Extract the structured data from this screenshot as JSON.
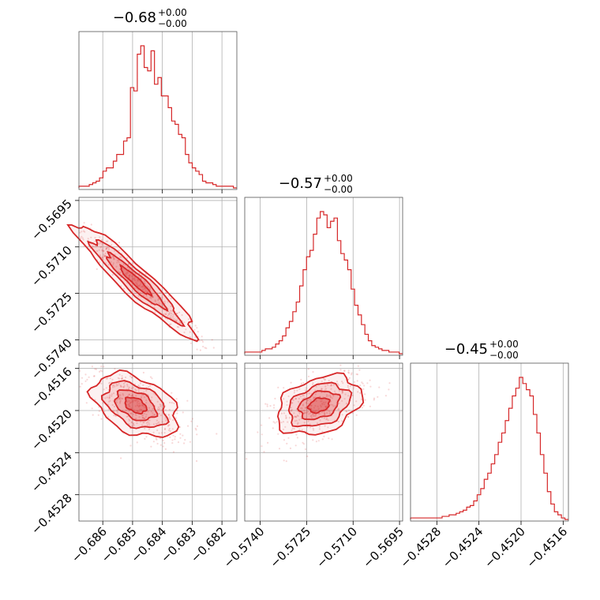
{
  "colors": {
    "series": "#d62728",
    "grid": "#b0b0b0",
    "frame": "#555555"
  },
  "chart_data": {
    "type": "corner",
    "parameters": [
      {
        "title": {
          "value": "−0.68",
          "plus": "+0.00",
          "minus": "−0.00"
        },
        "range": [
          -0.6868,
          -0.6815
        ],
        "ticks": [
          -0.686,
          -0.685,
          -0.684,
          -0.683,
          -0.682
        ],
        "tick_labels": [
          "−0.686",
          "−0.685",
          "−0.684",
          "−0.683",
          "−0.682"
        ],
        "hist": [
          1,
          1,
          1,
          2,
          3,
          4,
          6,
          10,
          12,
          12,
          16,
          20,
          20,
          28,
          30,
          60,
          58,
          80,
          85,
          72,
          70,
          82,
          62,
          66,
          55,
          55,
          48,
          40,
          38,
          32,
          30,
          20,
          15,
          12,
          10,
          8,
          4,
          3,
          3,
          2,
          1,
          1,
          1,
          1,
          1,
          0
        ],
        "median": -0.6849
      },
      {
        "title": {
          "value": "−0.57",
          "plus": "+0.00",
          "minus": "−0.00"
        },
        "range": [
          -0.5745,
          -0.5694
        ],
        "ticks": [
          -0.574,
          -0.5725,
          -0.571,
          -0.5695
        ],
        "tick_labels": [
          "−0.5740",
          "−0.5725",
          "−0.5710",
          "−0.5695"
        ],
        "hist": [
          1,
          1,
          1,
          1,
          1,
          2,
          3,
          3,
          4,
          6,
          8,
          11,
          16,
          20,
          26,
          32,
          42,
          52,
          60,
          64,
          74,
          84,
          88,
          86,
          78,
          82,
          84,
          70,
          62,
          58,
          52,
          40,
          30,
          24,
          18,
          12,
          8,
          5,
          4,
          3,
          2,
          2,
          1,
          1,
          1,
          0
        ],
        "median": -0.5721
      },
      {
        "title": {
          "value": "−0.45",
          "plus": "+0.00",
          "minus": "−0.00"
        },
        "range": [
          -0.45305,
          -0.45155
        ],
        "ticks": [
          -0.4528,
          -0.4524,
          -0.452,
          -0.4516
        ],
        "tick_labels": [
          "−0.4528",
          "−0.4524",
          "−0.4520",
          "−0.4516"
        ],
        "hist": [
          1,
          1,
          1,
          1,
          1,
          1,
          1,
          1,
          1,
          2,
          2,
          3,
          3,
          4,
          5,
          6,
          8,
          9,
          12,
          16,
          20,
          26,
          30,
          36,
          42,
          50,
          56,
          64,
          72,
          80,
          85,
          92,
          88,
          84,
          80,
          68,
          56,
          42,
          30,
          18,
          10,
          5,
          3,
          1,
          0
        ],
        "median": -0.45195
      }
    ],
    "pairs": [
      {
        "x": 0,
        "y": 1,
        "correlation": -0.98
      },
      {
        "x": 0,
        "y": 2,
        "correlation": -0.65
      },
      {
        "x": 1,
        "y": 2,
        "correlation": 0.55
      }
    ],
    "grid": true
  }
}
